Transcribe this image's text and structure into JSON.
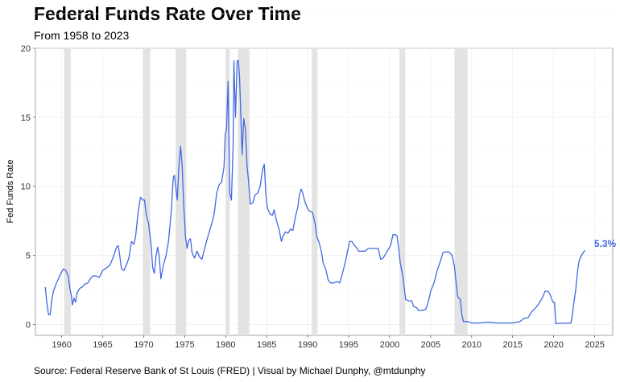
{
  "chart_data": {
    "type": "line",
    "title": "Federal Funds Rate Over Time",
    "subtitle": "From 1958 to 2023",
    "caption": "Source: Federal Reserve Bank of St Louis (FRED) | Visual by Michael Dunphy, @mtdunphy",
    "xlabel": "",
    "ylabel": "Fed Funds Rate",
    "xlim": [
      1956.8,
      2027.2
    ],
    "ylim": [
      -0.8,
      20
    ],
    "x_ticks": [
      "1960",
      "1965",
      "1970",
      "1975",
      "1980",
      "1985",
      "1990",
      "1995",
      "2000",
      "2005",
      "2010",
      "2015",
      "2020",
      "2025"
    ],
    "y_ticks": [
      "0",
      "5",
      "10",
      "15",
      "20"
    ],
    "grid": true,
    "line_color": "#4169E1",
    "band_color": "#E3E3E3",
    "end_label": "5.3%",
    "recessions": [
      [
        1960.3,
        1961.1
      ],
      [
        1969.9,
        1970.8
      ],
      [
        1973.9,
        1975.2
      ],
      [
        1980.0,
        1980.5
      ],
      [
        1981.5,
        1982.9
      ],
      [
        1990.5,
        1991.2
      ],
      [
        2001.2,
        2001.9
      ],
      [
        2007.9,
        2009.5
      ]
    ],
    "series": [
      {
        "points": [
          [
            1958.0,
            2.7
          ],
          [
            1958.2,
            1.5
          ],
          [
            1958.4,
            0.7
          ],
          [
            1958.6,
            0.7
          ],
          [
            1958.8,
            1.8
          ],
          [
            1959.0,
            2.4
          ],
          [
            1959.3,
            2.9
          ],
          [
            1959.6,
            3.3
          ],
          [
            1959.9,
            3.7
          ],
          [
            1960.2,
            4.0
          ],
          [
            1960.5,
            3.9
          ],
          [
            1960.8,
            3.5
          ],
          [
            1961.0,
            2.6
          ],
          [
            1961.2,
            2.0
          ],
          [
            1961.3,
            1.4
          ],
          [
            1961.5,
            1.9
          ],
          [
            1961.7,
            1.6
          ],
          [
            1961.9,
            2.3
          ],
          [
            1962.2,
            2.6
          ],
          [
            1962.5,
            2.7
          ],
          [
            1962.8,
            2.9
          ],
          [
            1963.2,
            3.0
          ],
          [
            1963.5,
            3.3
          ],
          [
            1963.8,
            3.5
          ],
          [
            1964.2,
            3.5
          ],
          [
            1964.6,
            3.4
          ],
          [
            1965.0,
            3.9
          ],
          [
            1965.5,
            4.1
          ],
          [
            1965.9,
            4.3
          ],
          [
            1966.3,
            4.9
          ],
          [
            1966.7,
            5.6
          ],
          [
            1966.9,
            5.7
          ],
          [
            1967.1,
            4.9
          ],
          [
            1967.3,
            4.0
          ],
          [
            1967.6,
            3.9
          ],
          [
            1967.9,
            4.3
          ],
          [
            1968.2,
            4.8
          ],
          [
            1968.5,
            6.0
          ],
          [
            1968.8,
            5.8
          ],
          [
            1969.0,
            6.3
          ],
          [
            1969.3,
            8.0
          ],
          [
            1969.6,
            9.2
          ],
          [
            1969.9,
            9.0
          ],
          [
            1970.1,
            9.0
          ],
          [
            1970.3,
            8.0
          ],
          [
            1970.6,
            7.3
          ],
          [
            1970.9,
            5.8
          ],
          [
            1971.1,
            4.1
          ],
          [
            1971.3,
            3.7
          ],
          [
            1971.5,
            4.9
          ],
          [
            1971.7,
            5.6
          ],
          [
            1971.9,
            4.9
          ],
          [
            1972.1,
            3.3
          ],
          [
            1972.4,
            4.3
          ],
          [
            1972.7,
            4.9
          ],
          [
            1973.0,
            5.9
          ],
          [
            1973.2,
            7.1
          ],
          [
            1973.4,
            8.5
          ],
          [
            1973.6,
            10.6
          ],
          [
            1973.75,
            10.8
          ],
          [
            1973.9,
            10.0
          ],
          [
            1974.1,
            9.0
          ],
          [
            1974.3,
            11.5
          ],
          [
            1974.5,
            12.9
          ],
          [
            1974.7,
            11.4
          ],
          [
            1974.9,
            8.5
          ],
          [
            1975.1,
            6.3
          ],
          [
            1975.3,
            5.5
          ],
          [
            1975.5,
            6.1
          ],
          [
            1975.7,
            6.2
          ],
          [
            1975.9,
            5.2
          ],
          [
            1976.2,
            4.8
          ],
          [
            1976.5,
            5.3
          ],
          [
            1976.8,
            4.9
          ],
          [
            1977.1,
            4.7
          ],
          [
            1977.4,
            5.4
          ],
          [
            1977.7,
            6.1
          ],
          [
            1978.0,
            6.7
          ],
          [
            1978.3,
            7.3
          ],
          [
            1978.6,
            8.0
          ],
          [
            1978.9,
            9.5
          ],
          [
            1979.2,
            10.1
          ],
          [
            1979.5,
            10.3
          ],
          [
            1979.8,
            11.4
          ],
          [
            1979.95,
            13.8
          ],
          [
            1980.1,
            14.1
          ],
          [
            1980.3,
            17.6
          ],
          [
            1980.4,
            13.2
          ],
          [
            1980.5,
            9.5
          ],
          [
            1980.7,
            9.0
          ],
          [
            1980.9,
            12.8
          ],
          [
            1981.0,
            19.1
          ],
          [
            1981.2,
            15.0
          ],
          [
            1981.4,
            19.1
          ],
          [
            1981.55,
            19.1
          ],
          [
            1981.7,
            17.8
          ],
          [
            1981.85,
            15.1
          ],
          [
            1982.0,
            12.3
          ],
          [
            1982.2,
            14.9
          ],
          [
            1982.4,
            14.2
          ],
          [
            1982.6,
            11.5
          ],
          [
            1982.8,
            10.3
          ],
          [
            1983.0,
            8.7
          ],
          [
            1983.3,
            8.8
          ],
          [
            1983.6,
            9.4
          ],
          [
            1983.9,
            9.5
          ],
          [
            1984.2,
            10.0
          ],
          [
            1984.5,
            11.2
          ],
          [
            1984.7,
            11.6
          ],
          [
            1984.9,
            9.4
          ],
          [
            1985.1,
            8.4
          ],
          [
            1985.4,
            8.0
          ],
          [
            1985.7,
            7.9
          ],
          [
            1985.9,
            8.3
          ],
          [
            1986.2,
            7.5
          ],
          [
            1986.5,
            6.9
          ],
          [
            1986.8,
            6.0
          ],
          [
            1987.0,
            6.4
          ],
          [
            1987.3,
            6.7
          ],
          [
            1987.6,
            6.6
          ],
          [
            1987.9,
            6.9
          ],
          [
            1988.2,
            6.8
          ],
          [
            1988.5,
            7.8
          ],
          [
            1988.8,
            8.5
          ],
          [
            1989.0,
            9.4
          ],
          [
            1989.2,
            9.8
          ],
          [
            1989.4,
            9.5
          ],
          [
            1989.6,
            9.0
          ],
          [
            1989.9,
            8.5
          ],
          [
            1990.2,
            8.2
          ],
          [
            1990.6,
            8.1
          ],
          [
            1990.9,
            7.3
          ],
          [
            1991.1,
            6.4
          ],
          [
            1991.4,
            5.9
          ],
          [
            1991.7,
            5.2
          ],
          [
            1991.9,
            4.4
          ],
          [
            1992.2,
            4.0
          ],
          [
            1992.5,
            3.2
          ],
          [
            1992.8,
            3.0
          ],
          [
            1993.2,
            3.0
          ],
          [
            1993.6,
            3.1
          ],
          [
            1993.9,
            3.0
          ],
          [
            1994.2,
            3.6
          ],
          [
            1994.5,
            4.3
          ],
          [
            1994.8,
            5.1
          ],
          [
            1995.1,
            6.0
          ],
          [
            1995.4,
            6.0
          ],
          [
            1995.7,
            5.7
          ],
          [
            1995.9,
            5.6
          ],
          [
            1996.2,
            5.3
          ],
          [
            1996.6,
            5.3
          ],
          [
            1997.0,
            5.3
          ],
          [
            1997.4,
            5.5
          ],
          [
            1997.8,
            5.5
          ],
          [
            1998.2,
            5.5
          ],
          [
            1998.6,
            5.5
          ],
          [
            1998.9,
            4.7
          ],
          [
            1999.2,
            4.8
          ],
          [
            1999.5,
            5.1
          ],
          [
            1999.8,
            5.4
          ],
          [
            2000.1,
            5.7
          ],
          [
            2000.4,
            6.5
          ],
          [
            2000.7,
            6.5
          ],
          [
            2000.9,
            6.4
          ],
          [
            2001.1,
            5.5
          ],
          [
            2001.3,
            4.4
          ],
          [
            2001.6,
            3.5
          ],
          [
            2001.8,
            2.5
          ],
          [
            2001.95,
            1.8
          ],
          [
            2002.3,
            1.7
          ],
          [
            2002.7,
            1.7
          ],
          [
            2002.9,
            1.3
          ],
          [
            2003.3,
            1.2
          ],
          [
            2003.5,
            1.0
          ],
          [
            2004.0,
            1.0
          ],
          [
            2004.4,
            1.1
          ],
          [
            2004.7,
            1.6
          ],
          [
            2005.0,
            2.4
          ],
          [
            2005.4,
            3.0
          ],
          [
            2005.8,
            3.9
          ],
          [
            2006.2,
            4.6
          ],
          [
            2006.5,
            5.2
          ],
          [
            2006.8,
            5.25
          ],
          [
            2007.2,
            5.25
          ],
          [
            2007.6,
            5.0
          ],
          [
            2007.9,
            4.2
          ],
          [
            2008.1,
            3.0
          ],
          [
            2008.3,
            2.0
          ],
          [
            2008.6,
            1.8
          ],
          [
            2008.8,
            0.7
          ],
          [
            2009.0,
            0.2
          ],
          [
            2009.5,
            0.2
          ],
          [
            2010.0,
            0.1
          ],
          [
            2011.0,
            0.1
          ],
          [
            2012.0,
            0.15
          ],
          [
            2013.0,
            0.1
          ],
          [
            2014.0,
            0.1
          ],
          [
            2015.0,
            0.1
          ],
          [
            2015.9,
            0.2
          ],
          [
            2016.3,
            0.4
          ],
          [
            2016.9,
            0.5
          ],
          [
            2017.3,
            0.9
          ],
          [
            2017.8,
            1.2
          ],
          [
            2018.2,
            1.5
          ],
          [
            2018.6,
            1.9
          ],
          [
            2018.95,
            2.4
          ],
          [
            2019.3,
            2.4
          ],
          [
            2019.6,
            2.1
          ],
          [
            2019.9,
            1.6
          ],
          [
            2020.1,
            1.6
          ],
          [
            2020.25,
            0.05
          ],
          [
            2021.0,
            0.08
          ],
          [
            2021.8,
            0.08
          ],
          [
            2022.1,
            0.1
          ],
          [
            2022.3,
            0.8
          ],
          [
            2022.5,
            1.7
          ],
          [
            2022.7,
            2.6
          ],
          [
            2022.9,
            3.8
          ],
          [
            2023.1,
            4.6
          ],
          [
            2023.4,
            5.0
          ],
          [
            2023.7,
            5.3
          ],
          [
            2023.85,
            5.33
          ]
        ]
      }
    ]
  }
}
